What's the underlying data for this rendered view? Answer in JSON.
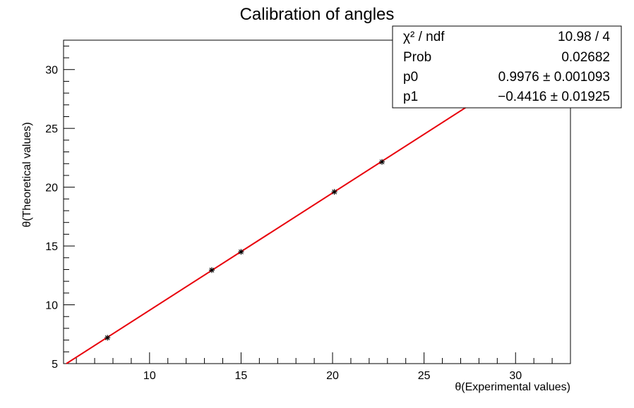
{
  "chart_data": {
    "type": "scatter",
    "title": "Calibration of angles",
    "xlabel": "θ(Experimental values)",
    "ylabel": "θ(Theoretical values)",
    "xlim": [
      5.3,
      33.0
    ],
    "ylim": [
      5.0,
      32.5
    ],
    "xticks": [
      10,
      15,
      20,
      25,
      30
    ],
    "yticks": [
      5,
      10,
      15,
      20,
      25,
      30
    ],
    "grid": false,
    "series": [
      {
        "name": "data",
        "marker": "*",
        "color": "#000000",
        "x": [
          7.7,
          13.4,
          15.0,
          20.1,
          22.7,
          27.8
        ],
        "y": [
          7.2,
          12.95,
          14.5,
          19.6,
          22.15,
          27.3
        ]
      }
    ],
    "fit": {
      "name": "pol1",
      "color": "#e8000b",
      "p0": 0.9976,
      "p1": -0.4416,
      "x_range": [
        5.3,
        33.0
      ]
    }
  },
  "stats_box": {
    "rows": [
      {
        "label": "χ² / ndf",
        "value": "10.98 / 4"
      },
      {
        "label": "Prob",
        "value": "0.02682"
      },
      {
        "label": "p0",
        "value": "0.9976 ± 0.001093"
      },
      {
        "label": "p1",
        "value": "−0.4416 ± 0.01925"
      }
    ]
  }
}
